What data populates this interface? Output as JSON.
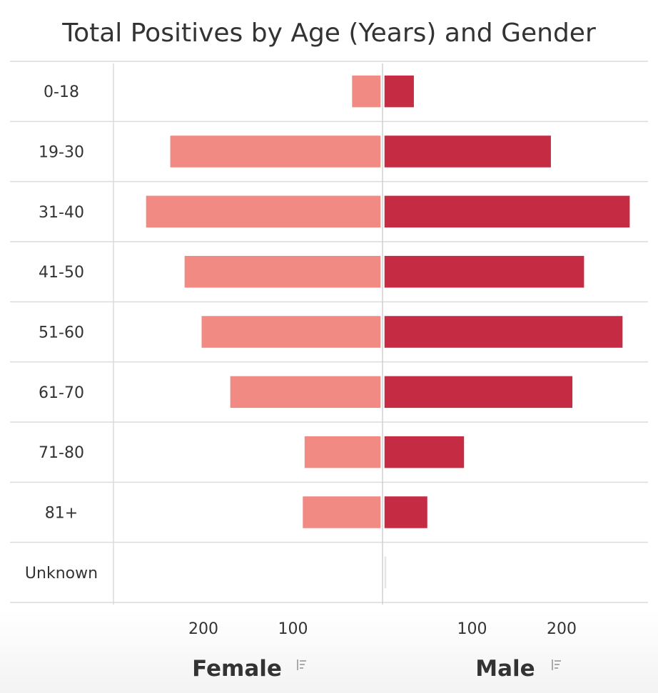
{
  "chart_data": {
    "type": "bar",
    "orientation": "horizontal",
    "layout": "diverging",
    "title": "Total Positives by Age (Years) and Gender",
    "categories": [
      "0-18",
      "19-30",
      "31-40",
      "41-50",
      "51-60",
      "61-70",
      "71-80",
      "81+",
      "Unknown"
    ],
    "series": [
      {
        "name": "Female",
        "side": "left",
        "color": "#f08a82",
        "values": [
          33,
          236,
          263,
          220,
          201,
          169,
          86,
          88,
          0
        ]
      },
      {
        "name": "Male",
        "side": "right",
        "color": "#c52c44",
        "values": [
          34,
          187,
          275,
          224,
          267,
          211,
          90,
          49,
          2
        ]
      }
    ],
    "x_ticks_left": [
      "200",
      "100"
    ],
    "x_ticks_right": [
      "100",
      "200"
    ],
    "tick_values": [
      200,
      100
    ],
    "xlim": [
      0,
      280
    ],
    "grid": true,
    "legend_icon": "sort-icon"
  }
}
